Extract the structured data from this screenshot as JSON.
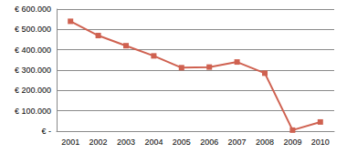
{
  "chart_data": {
    "type": "line",
    "categories": [
      "2001",
      "2002",
      "2003",
      "2004",
      "2005",
      "2006",
      "2007",
      "2008",
      "2009",
      "2010"
    ],
    "values": [
      540000,
      470000,
      420000,
      370000,
      312000,
      315000,
      340000,
      285000,
      5000,
      45000
    ],
    "color": "#cf6150",
    "marker": "square",
    "line_style": "solid",
    "ylim": [
      0,
      600000
    ],
    "yticks": [
      {
        "value": 0,
        "label": "€ -"
      },
      {
        "value": 100000,
        "label": "€ 100.000"
      },
      {
        "value": 200000,
        "label": "€ 200.000"
      },
      {
        "value": 300000,
        "label": "€ 300.000"
      },
      {
        "value": 400000,
        "label": "€ 400.000"
      },
      {
        "value": 500000,
        "label": "€ 500.000"
      },
      {
        "value": 600000,
        "label": "€ 600.000"
      }
    ],
    "grid": true
  }
}
